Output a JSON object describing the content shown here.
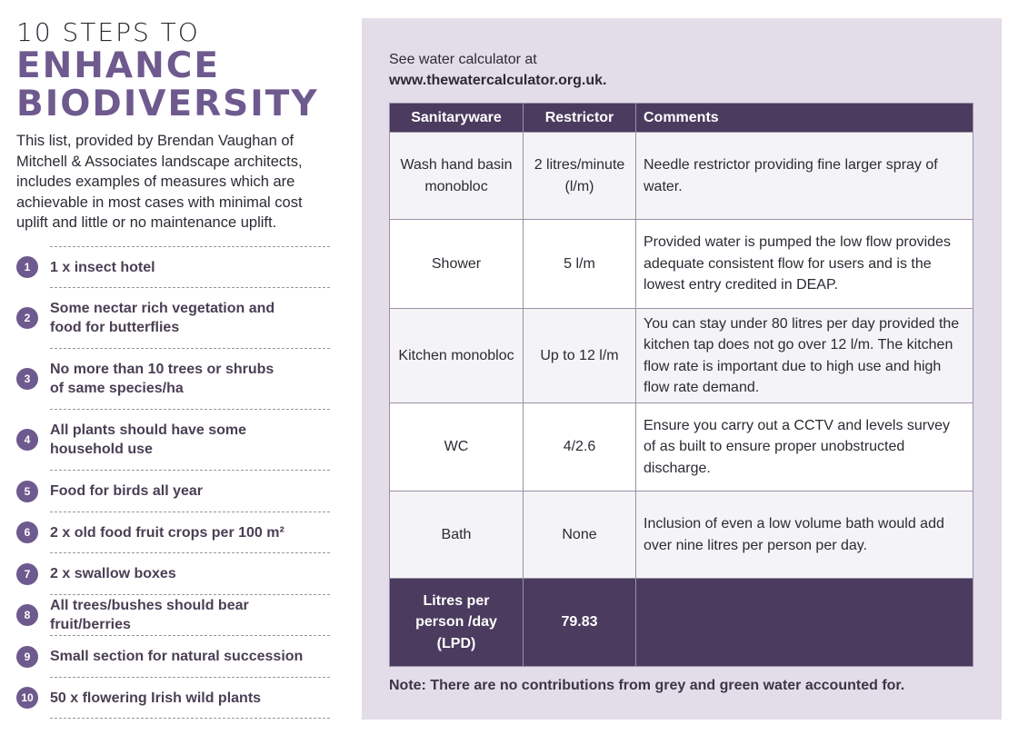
{
  "colors": {
    "accent": "#6e5a8e",
    "header": "#4b3b5e",
    "panel": "#e3dde9"
  },
  "left": {
    "title_line1": "10 STEPS TO",
    "title_line2": "ENHANCE",
    "title_line3": "BIODIVERSITY",
    "intro": "This list, provided by Brendan Vaughan of Mitchell & Associates landscape architects, includes examples of measures which are achievable in most cases with minimal cost uplift and little or no maintenance uplift.",
    "items": [
      {
        "n": "1",
        "text": "1 x insect hotel"
      },
      {
        "n": "2",
        "text": "Some nectar rich vegetation and food for butterflies"
      },
      {
        "n": "3",
        "text": "No more than 10 trees or shrubs of same species/ha"
      },
      {
        "n": "4",
        "text": "All plants should have some household use"
      },
      {
        "n": "5",
        "text": "Food for birds all year"
      },
      {
        "n": "6",
        "text": "2 x old food fruit crops per 100 m²"
      },
      {
        "n": "7",
        "text": "2 x swallow boxes"
      },
      {
        "n": "8",
        "text": "All trees/bushes should bear fruit/berries"
      },
      {
        "n": "9",
        "text": "Small section for natural succession"
      },
      {
        "n": "10",
        "text": "50 x flowering Irish wild plants"
      }
    ]
  },
  "right": {
    "see_line1": "See water calculator at",
    "see_line2": "www.thewatercalculator.org.uk.",
    "headers": [
      "Sanitaryware",
      "Restrictor",
      "Comments"
    ],
    "rows": [
      [
        "Wash hand basin monobloc",
        "2 litres/minute (l/m)",
        "Needle restrictor providing fine larger spray of water."
      ],
      [
        "Shower",
        "5 l/m",
        "Provided water is pumped the low flow provides adequate consistent flow for users and is the lowest entry credited in DEAP."
      ],
      [
        "Kitchen monobloc",
        "Up to 12 l/m",
        "You can stay under 80 litres per day provided the kitchen tap does not go over 12 l/m. The kitchen flow rate is important due to high use and high flow rate demand."
      ],
      [
        "WC",
        "4/2.6",
        "Ensure you carry out a CCTV and levels survey of as built to ensure proper unobstructed discharge."
      ],
      [
        "Bath",
        "None",
        "Inclusion of even a low volume bath would add over nine litres per person per day."
      ]
    ],
    "total_label": "Litres per person /day (LPD)",
    "total_value": "79.83",
    "note": "Note: There are no contributions from grey and green water accounted for."
  }
}
